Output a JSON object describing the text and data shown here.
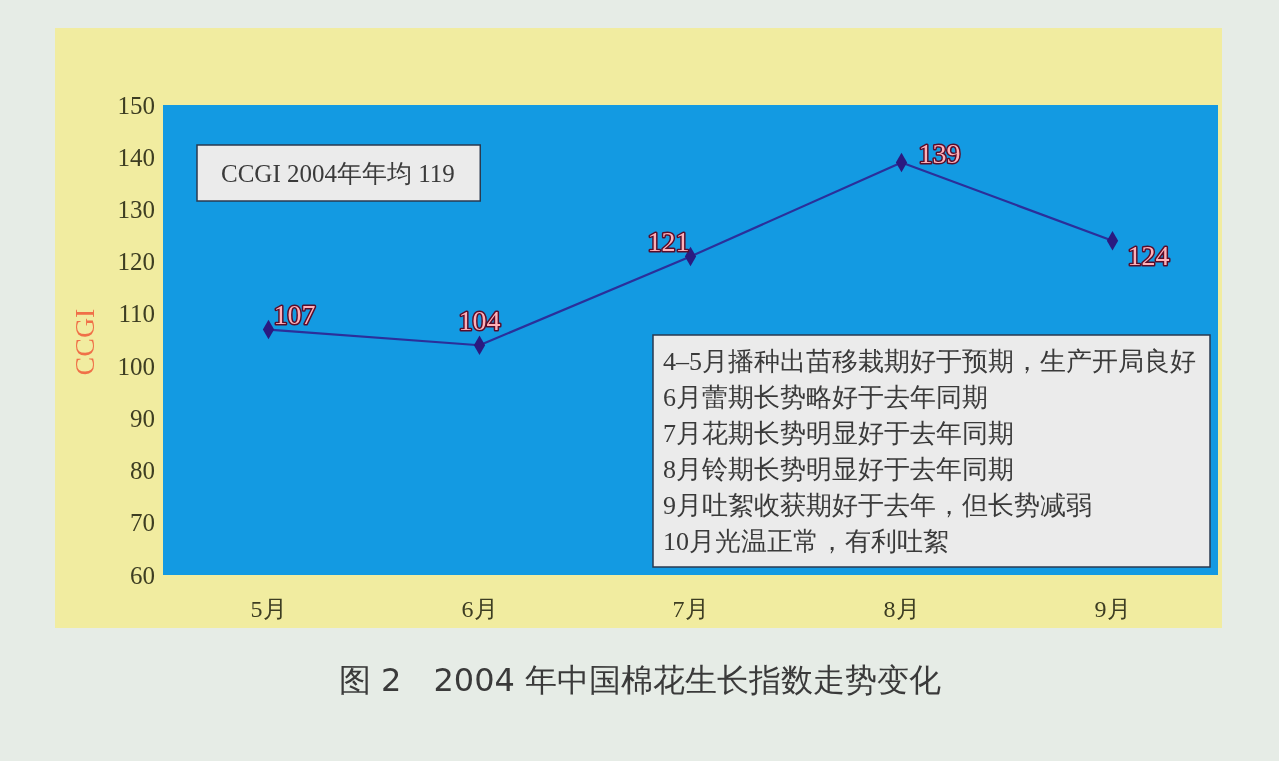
{
  "chart_data": {
    "type": "line",
    "title": "图 2　2004 年中国棉花生长指数走势变化",
    "ylabel": "CCGI",
    "categories": [
      "5月",
      "6月",
      "7月",
      "8月",
      "9月"
    ],
    "series": [
      {
        "color": "#2b2f9a",
        "values": [
          107,
          104,
          121,
          139,
          124
        ]
      }
    ],
    "ylim": [
      60,
      150
    ],
    "yticks": [
      60,
      70,
      80,
      90,
      100,
      110,
      120,
      130,
      140,
      150
    ],
    "marker": "diamond",
    "data_labels": true,
    "annotations": [
      "CCGI  2004年年均 119",
      "4–5月播种出苗移栽期好于预期，生产开局良好\n6月蕾期长势略好于去年同期\n7月花期长势明显好于去年同期\n8月铃期长势明显好于去年同期\n9月吐絮收获期好于去年，但长势减弱\n10月光温正常，有利吐絮"
    ]
  }
}
